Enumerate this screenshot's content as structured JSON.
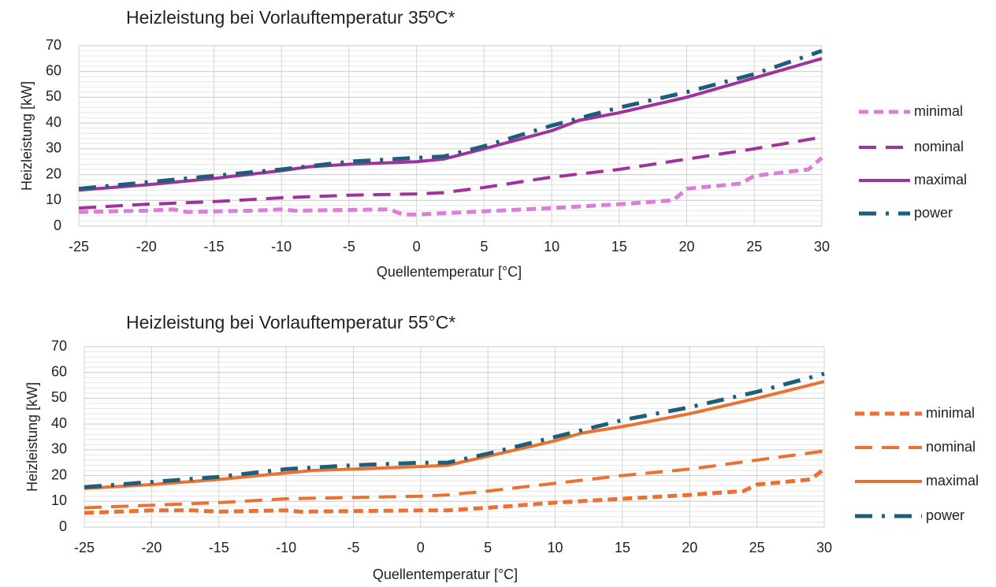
{
  "chart_data": [
    {
      "type": "line",
      "title": "Heizleistung bei Vorlauftemperatur 35ºC*",
      "x_label": "Quellentemperatur [°C]",
      "y_label": "Heizleistung [kW]",
      "xlim": [
        -25,
        30
      ],
      "xticks": [
        -25,
        -20,
        -15,
        -10,
        -5,
        0,
        5,
        10,
        15,
        20,
        25,
        30
      ],
      "ylim": [
        0,
        70
      ],
      "yticks": [
        0,
        10,
        20,
        30,
        40,
        50,
        60,
        70
      ],
      "grid": true,
      "series": [
        {
          "name": "minimal",
          "color": "#dc7ed6",
          "dash": "short-dash",
          "x": [
            -25,
            -20,
            -18,
            -17,
            -12,
            -10,
            -9,
            -2,
            -1,
            0,
            2,
            10,
            15,
            19,
            20,
            24,
            25,
            29,
            30
          ],
          "values": [
            5.5,
            6,
            6.5,
            5.5,
            6,
            6.5,
            6,
            6.5,
            4.5,
            4.5,
            5,
            7,
            8.5,
            10,
            14.5,
            16.5,
            19.5,
            22,
            26.5
          ]
        },
        {
          "name": "nominal",
          "color": "#a0329c",
          "dash": "long-dash",
          "x": [
            -25,
            -20,
            -15,
            -10,
            -5,
            0,
            2,
            5,
            10,
            15,
            20,
            25,
            30
          ],
          "values": [
            7,
            8.5,
            9.5,
            11,
            12,
            12.5,
            13,
            15,
            19,
            22,
            26,
            30,
            34.5
          ]
        },
        {
          "name": "maximal",
          "color": "#a0329c",
          "dash": "solid",
          "x": [
            -25,
            -20,
            -15,
            -10,
            -8,
            -5,
            0,
            2,
            5,
            10,
            12,
            15,
            20,
            25,
            30
          ],
          "values": [
            14,
            16,
            18.5,
            21.5,
            23,
            24,
            25,
            26,
            30,
            37,
            41,
            44,
            50,
            57.5,
            65
          ]
        },
        {
          "name": "power",
          "color": "#1d5e7a",
          "dash": "long-dash-dot",
          "x": [
            -25,
            -20,
            -15,
            -10,
            -5,
            0,
            2,
            5,
            10,
            15,
            20,
            25,
            30
          ],
          "values": [
            14.5,
            17,
            19.5,
            22,
            25,
            26.5,
            27,
            31,
            39,
            46,
            52,
            59,
            68
          ]
        }
      ]
    },
    {
      "type": "line",
      "title": "Heizleistung bei Vorlauftemperatur 55°C*",
      "x_label": "Quellentemperatur [°C]",
      "y_label": "Heizleistung [kW]",
      "xlim": [
        -25,
        30
      ],
      "xticks": [
        -25,
        -20,
        -15,
        -10,
        -5,
        0,
        5,
        10,
        15,
        20,
        25,
        30
      ],
      "ylim": [
        0,
        70
      ],
      "yticks": [
        0,
        10,
        20,
        30,
        40,
        50,
        60,
        70
      ],
      "grid": true,
      "series": [
        {
          "name": "minimal",
          "color": "#e97132",
          "dash": "short-dash",
          "x": [
            -25,
            -20,
            -17,
            -15,
            -10,
            -9,
            0,
            2,
            5,
            10,
            15,
            20,
            24,
            25,
            29,
            30
          ],
          "values": [
            5.5,
            6.5,
            6.5,
            6,
            6.5,
            6,
            6.5,
            6.5,
            7.5,
            9.5,
            11,
            12.5,
            14,
            16.5,
            18.5,
            22.5
          ]
        },
        {
          "name": "nominal",
          "color": "#e97132",
          "dash": "long-dash",
          "x": [
            -25,
            -20,
            -15,
            -10,
            -5,
            0,
            2,
            5,
            10,
            15,
            20,
            25,
            30
          ],
          "values": [
            7.5,
            8.5,
            9.5,
            11,
            11.5,
            12,
            12.5,
            14,
            17,
            20,
            22.5,
            26,
            29.5
          ]
        },
        {
          "name": "maximal",
          "color": "#e97132",
          "dash": "solid",
          "x": [
            -25,
            -20,
            -15,
            -10,
            -8,
            -5,
            0,
            2,
            5,
            10,
            12,
            15,
            20,
            25,
            30
          ],
          "values": [
            15,
            16.5,
            18.5,
            21,
            22,
            22.5,
            23.5,
            24,
            27.5,
            33.5,
            36.5,
            39,
            44,
            50,
            56.5
          ]
        },
        {
          "name": "power",
          "color": "#1d5e7a",
          "dash": "long-dash-dot",
          "x": [
            -25,
            -20,
            -15,
            -10,
            -5,
            0,
            2,
            5,
            10,
            15,
            20,
            25,
            30
          ],
          "values": [
            15.5,
            17.5,
            19.5,
            22.5,
            24,
            25,
            25,
            28.5,
            35,
            41.5,
            46.5,
            52.5,
            59.5
          ]
        }
      ]
    }
  ]
}
